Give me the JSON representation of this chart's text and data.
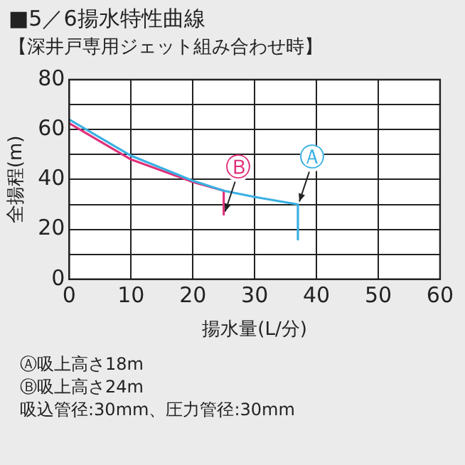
{
  "chart_data": {
    "type": "line",
    "title": "■5／6揚水特性曲線",
    "subtitle": "【深井戸専用ジェット組み合わせ時】",
    "xlabel": "揚水量(L/分)",
    "ylabel": "全揚程(m)",
    "series": [
      {
        "color": "#3ab0e2",
        "x": [
          0,
          10,
          20,
          25,
          30,
          37,
          37
        ],
        "values": [
          64,
          49.5,
          39.5,
          35.5,
          33,
          30,
          16
        ]
      },
      {
        "color": "#e0307a",
        "x": [
          0,
          10,
          20,
          25,
          25
        ],
        "values": [
          62.5,
          48,
          39,
          35.5,
          26
        ]
      }
    ],
    "annotations": [
      {
        "text": "Ⓐ",
        "x": 37,
        "y": 30
      },
      {
        "text": "Ⓑ",
        "x": 25,
        "y": 26
      },
      "Ⓐ吸上高さ18m",
      "Ⓑ吸上高さ24m",
      "吸込管径:30mm、圧力管径:30mm"
    ],
    "xlim": [
      0,
      60
    ],
    "xticks": [
      0,
      10,
      20,
      30,
      40,
      50,
      60
    ],
    "ylim": [
      0,
      80
    ],
    "yticks": [
      0,
      {
        "value": 10,
        "label": null
      },
      20,
      {
        "value": 30,
        "label": null
      },
      40,
      {
        "value": 50,
        "label": null
      },
      60,
      {
        "value": 70,
        "label": null
      },
      80
    ],
    "grid": true,
    "marker": "none",
    "line_style": "solid",
    "legend": false
  }
}
